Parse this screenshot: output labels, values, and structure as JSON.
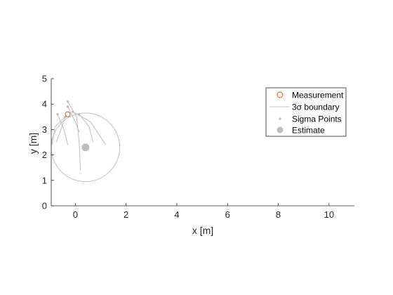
{
  "chart_data": {
    "type": "scatter",
    "title": "",
    "xlabel": "x [m]",
    "ylabel": "y [m]",
    "xlim": [
      -0.95,
      11
    ],
    "ylim": [
      0,
      5
    ],
    "xticks": [
      0,
      2,
      4,
      6,
      8,
      10
    ],
    "yticks": [
      0,
      1,
      2,
      3,
      4,
      5
    ],
    "grid": false,
    "legend_position": "top-right",
    "colors": {
      "measurement": "#D95319",
      "boundary": "#BDBDBD",
      "sigma": "#B8B8B8",
      "estimate": "#BDBDBD",
      "axis": "#262626"
    },
    "measurement": {
      "name": "Measurement",
      "x": -0.3,
      "y": 3.6
    },
    "estimate": {
      "name": "Estimate",
      "x": 0.4,
      "y": 2.3
    },
    "boundary": {
      "name": "3σ boundary",
      "center": [
        0.4,
        2.3
      ],
      "radius": 1.35
    },
    "sigma_points": {
      "name": "Sigma Points",
      "points": [
        {
          "x": -0.3,
          "y": 4.1
        },
        {
          "x": -0.4,
          "y": 3.5
        },
        {
          "x": -0.1,
          "y": 3.7
        },
        {
          "x": 0.15,
          "y": 3.6
        },
        {
          "x": -0.7,
          "y": 3.6
        },
        {
          "x": -0.3,
          "y": 3.9
        }
      ]
    },
    "trajectories": [
      [
        [
          -0.3,
          4.1
        ],
        [
          0.05,
          3.5
        ],
        [
          0.15,
          2.5
        ],
        [
          0.2,
          1.4
        ]
      ],
      [
        [
          -0.4,
          3.5
        ],
        [
          -0.8,
          3.1
        ],
        [
          -0.92,
          2.4
        ]
      ],
      [
        [
          -0.1,
          3.7
        ],
        [
          0.6,
          3.3
        ],
        [
          1.2,
          2.4
        ]
      ],
      [
        [
          0.15,
          3.6
        ],
        [
          0.55,
          3.1
        ],
        [
          0.7,
          2.5
        ]
      ],
      [
        [
          -0.7,
          3.6
        ],
        [
          -0.45,
          3.0
        ],
        [
          -0.3,
          2.4
        ]
      ],
      [
        [
          -0.3,
          3.9
        ],
        [
          0.0,
          3.3
        ],
        [
          0.15,
          2.9
        ]
      ],
      [
        [
          -0.4,
          3.5
        ],
        [
          -0.6,
          2.9
        ],
        [
          -0.75,
          2.5
        ]
      ]
    ],
    "legend_entries": [
      "Measurement",
      "3σ boundary",
      "Sigma Points",
      "Estimate"
    ]
  }
}
